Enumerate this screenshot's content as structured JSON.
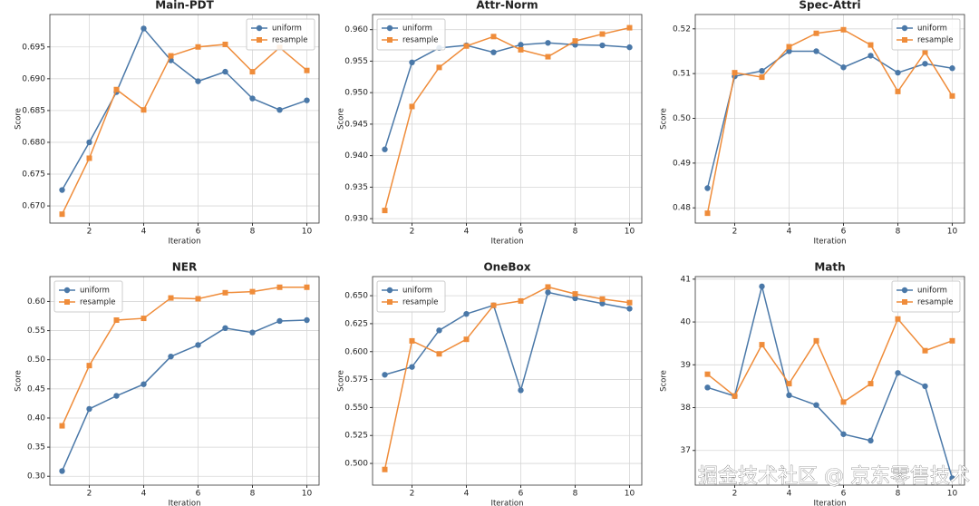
{
  "chart_data": [
    {
      "type": "line",
      "title": "Main-PDT",
      "xlabel": "Iteration",
      "ylabel": "Score",
      "grid": true,
      "legend": "upper right",
      "x": [
        1,
        2,
        3,
        4,
        5,
        6,
        7,
        8,
        9,
        10
      ],
      "xlim": [
        0.55,
        10.45
      ],
      "xticks": [
        2,
        4,
        6,
        8,
        10
      ],
      "ylim": [
        0.6673,
        0.7001
      ],
      "yticks": [
        {
          "value": 0.67,
          "label": "0.670"
        },
        0.675,
        {
          "value": 0.68,
          "label": "0.680"
        },
        0.685,
        {
          "value": 0.69,
          "label": "0.690"
        },
        0.695
      ],
      "series": [
        {
          "name": "uniform",
          "color": "#4a78a8",
          "marker": "circle",
          "values": [
            0.6725,
            0.68,
            0.6879,
            0.6979,
            0.6929,
            0.6896,
            0.6911,
            0.6869,
            0.6851,
            0.6866
          ]
        },
        {
          "name": "resample",
          "color": "#ef8c3a",
          "marker": "square",
          "values": [
            0.6687,
            0.6775,
            0.6883,
            0.6851,
            0.6936,
            0.695,
            0.6954,
            0.6911,
            0.6949,
            0.6913
          ]
        }
      ]
    },
    {
      "type": "line",
      "title": "Attr-Norm",
      "xlabel": "Iteration",
      "ylabel": "Score",
      "grid": true,
      "legend": "upper left",
      "x": [
        1,
        2,
        3,
        4,
        5,
        6,
        7,
        8,
        9,
        10
      ],
      "xlim": [
        0.55,
        10.45
      ],
      "xticks": [
        2,
        4,
        6,
        8,
        10
      ],
      "ylim": [
        0.9293,
        0.9624
      ],
      "yticks": [
        {
          "value": 0.93,
          "label": "0.930"
        },
        0.935,
        {
          "value": 0.94,
          "label": "0.940"
        },
        0.945,
        {
          "value": 0.95,
          "label": "0.950"
        },
        0.955,
        {
          "value": 0.96,
          "label": "0.960"
        }
      ],
      "series": [
        {
          "name": "uniform",
          "color": "#4a78a8",
          "marker": "circle",
          "values": [
            0.941,
            0.9548,
            0.9571,
            0.9575,
            0.9564,
            0.9576,
            0.9579,
            0.9576,
            0.9575,
            0.9572
          ]
        },
        {
          "name": "resample",
          "color": "#ef8c3a",
          "marker": "square",
          "values": [
            0.9313,
            0.9478,
            0.954,
            0.9574,
            0.9589,
            0.9568,
            0.9557,
            0.9582,
            0.9593,
            0.9603
          ]
        }
      ]
    },
    {
      "type": "line",
      "title": "Spec-Attri",
      "xlabel": "Iteration",
      "ylabel": "Score",
      "grid": true,
      "legend": "upper right",
      "x": [
        1,
        2,
        3,
        4,
        5,
        6,
        7,
        8,
        9,
        10
      ],
      "xlim": [
        0.55,
        10.45
      ],
      "xticks": [
        2,
        4,
        6,
        8,
        10
      ],
      "ylim": [
        0.4766,
        0.5232
      ],
      "yticks": [
        0.48,
        0.49,
        {
          "value": 0.5,
          "label": "0.50"
        },
        0.51,
        0.52
      ],
      "series": [
        {
          "name": "uniform",
          "color": "#4a78a8",
          "marker": "circle",
          "values": [
            0.4844,
            0.5094,
            0.5106,
            0.515,
            0.515,
            0.5114,
            0.514,
            0.5102,
            0.5122,
            0.5112
          ]
        },
        {
          "name": "resample",
          "color": "#ef8c3a",
          "marker": "square",
          "values": [
            0.4788,
            0.5102,
            0.5092,
            0.516,
            0.519,
            0.5198,
            0.5164,
            0.506,
            0.5148,
            0.505
          ]
        }
      ]
    },
    {
      "type": "line",
      "title": "NER",
      "xlabel": "Iteration",
      "ylabel": "Score",
      "grid": true,
      "legend": "upper left",
      "x": [
        1,
        2,
        3,
        4,
        5,
        6,
        7,
        8,
        9,
        10
      ],
      "xlim": [
        0.55,
        10.45
      ],
      "xticks": [
        2,
        4,
        6,
        8,
        10
      ],
      "ylim": [
        0.2848,
        0.6427
      ],
      "yticks": [
        {
          "value": 0.3,
          "label": "0.30"
        },
        0.35,
        {
          "value": 0.4,
          "label": "0.40"
        },
        0.45,
        {
          "value": 0.5,
          "label": "0.50"
        },
        0.55,
        {
          "value": 0.6,
          "label": "0.60"
        }
      ],
      "series": [
        {
          "name": "uniform",
          "color": "#4a78a8",
          "marker": "circle",
          "values": [
            0.309,
            0.4156,
            0.438,
            0.458,
            0.5055,
            0.5253,
            0.5543,
            0.5467,
            0.5665,
            0.568
          ]
        },
        {
          "name": "resample",
          "color": "#ef8c3a",
          "marker": "square",
          "values": [
            0.3866,
            0.49,
            0.568,
            0.571,
            0.606,
            0.6046,
            0.615,
            0.6168,
            0.6244,
            0.6244
          ]
        }
      ]
    },
    {
      "type": "line",
      "title": "OneBox",
      "xlabel": "Iteration",
      "ylabel": "Score",
      "grid": true,
      "legend": "upper left",
      "x": [
        1,
        2,
        3,
        4,
        5,
        6,
        7,
        8,
        9,
        10
      ],
      "xlim": [
        0.55,
        10.45
      ],
      "xticks": [
        2,
        4,
        6,
        8,
        10
      ],
      "ylim": [
        0.4806,
        0.6671
      ],
      "yticks": [
        {
          "value": 0.5,
          "label": "0.500"
        },
        0.525,
        {
          "value": 0.55,
          "label": "0.550"
        },
        0.575,
        {
          "value": 0.6,
          "label": "0.600"
        },
        0.625,
        {
          "value": 0.65,
          "label": "0.650"
        }
      ],
      "series": [
        {
          "name": "uniform",
          "color": "#4a78a8",
          "marker": "circle",
          "values": [
            0.5793,
            0.5863,
            0.619,
            0.6337,
            0.6414,
            0.5654,
            0.653,
            0.6477,
            0.643,
            0.6384
          ]
        },
        {
          "name": "resample",
          "color": "#ef8c3a",
          "marker": "square",
          "values": [
            0.4946,
            0.6096,
            0.598,
            0.611,
            0.6414,
            0.6453,
            0.6578,
            0.6516,
            0.647,
            0.6438
          ]
        }
      ]
    },
    {
      "type": "line",
      "title": "Math",
      "xlabel": "Iteration",
      "ylabel": "Score",
      "grid": true,
      "legend": "upper right",
      "x": [
        1,
        2,
        3,
        4,
        5,
        6,
        7,
        8,
        9,
        10
      ],
      "xlim": [
        0.55,
        10.45
      ],
      "xticks": [
        2,
        4,
        6,
        8,
        10
      ],
      "ylim": [
        36.19,
        41.06
      ],
      "yticks": [
        37,
        38,
        39,
        40,
        41
      ],
      "series": [
        {
          "name": "uniform",
          "color": "#4a78a8",
          "marker": "circle",
          "values": [
            38.47,
            38.27,
            40.83,
            38.29,
            38.06,
            37.38,
            37.23,
            38.81,
            38.5,
            36.35
          ]
        },
        {
          "name": "resample",
          "color": "#ef8c3a",
          "marker": "square",
          "values": [
            38.78,
            38.27,
            39.47,
            38.56,
            39.56,
            38.13,
            38.56,
            40.07,
            39.33,
            39.56
          ]
        }
      ]
    }
  ],
  "watermark": "掘金技术社区 @ 京东零售技术"
}
